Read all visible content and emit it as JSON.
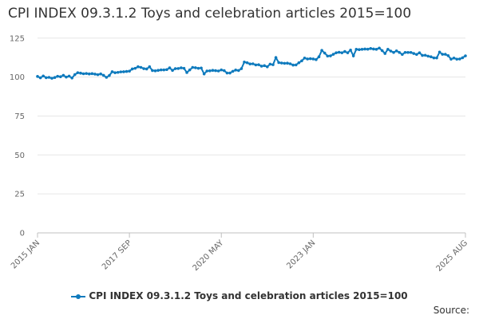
{
  "chart_data": {
    "type": "line",
    "title": "CPI INDEX 09.3.1.2 Toys and celebration articles 2015=100",
    "xlabel": "",
    "ylabel": "",
    "ylim": [
      0,
      130
    ],
    "yticks": [
      0,
      25,
      50,
      75,
      100,
      125
    ],
    "grid": true,
    "legend_position": "bottom",
    "x_tick_labels": [
      "2015 JAN",
      "2017 SEP",
      "2020 MAY",
      "2023 JAN",
      "2025 AUG"
    ],
    "x_start": "2015-01",
    "x_end": "2025-08",
    "series": [
      {
        "name": "CPI INDEX 09.3.1.2 Toys and celebration articles 2015=100",
        "color": "#0e7abd",
        "values": [
          100.4,
          99.5,
          100.7,
          99.6,
          99.8,
          99.2,
          99.7,
          100.5,
          100.2,
          101.1,
          100.0,
          100.6,
          99.4,
          101.6,
          102.8,
          102.5,
          102.1,
          102.3,
          102.0,
          102.2,
          101.9,
          101.5,
          102.0,
          101.1,
          99.8,
          101.0,
          103.4,
          102.8,
          103.0,
          103.3,
          103.4,
          103.6,
          103.8,
          105.2,
          105.6,
          106.6,
          106.2,
          105.4,
          105.2,
          106.6,
          104.2,
          104.0,
          104.3,
          104.6,
          104.6,
          104.8,
          105.9,
          104.3,
          105.4,
          105.5,
          105.9,
          105.6,
          102.9,
          104.6,
          106.2,
          106.0,
          105.6,
          105.8,
          102.0,
          103.9,
          104.0,
          104.3,
          104.1,
          103.9,
          104.6,
          104.1,
          102.6,
          102.6,
          103.7,
          104.5,
          104.2,
          105.4,
          109.6,
          109.2,
          108.4,
          108.5,
          107.8,
          107.9,
          107.0,
          107.3,
          106.6,
          108.3,
          107.9,
          112.5,
          109.3,
          109.0,
          108.8,
          108.9,
          108.5,
          107.7,
          107.8,
          109.2,
          110.4,
          112.2,
          111.6,
          111.8,
          111.6,
          111.2,
          113.0,
          117.1,
          115.4,
          113.5,
          113.6,
          114.6,
          115.6,
          115.9,
          115.6,
          116.4,
          115.6,
          117.3,
          113.6,
          117.8,
          117.6,
          117.8,
          118.0,
          117.9,
          118.3,
          118.0,
          117.8,
          118.6,
          117.0,
          115.1,
          117.8,
          116.7,
          115.8,
          116.8,
          115.8,
          114.5,
          115.8,
          115.8,
          115.8,
          115.1,
          114.5,
          115.6,
          113.9,
          114.0,
          113.4,
          113.0,
          112.3,
          112.3,
          116.0,
          114.6,
          114.6,
          113.7,
          111.5,
          112.2,
          111.5,
          111.6,
          112.4,
          113.6
        ]
      }
    ]
  },
  "footer": {
    "source_label": "Source:"
  }
}
